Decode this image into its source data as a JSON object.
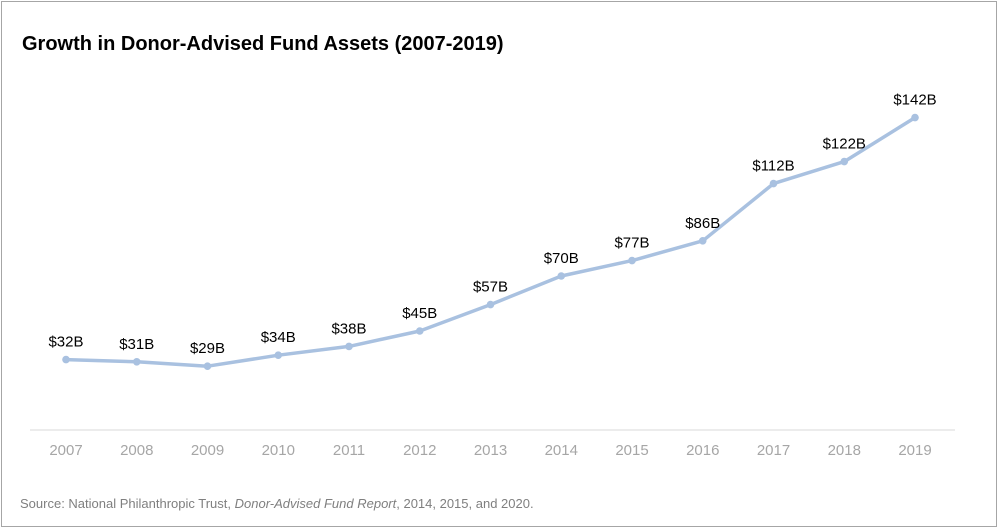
{
  "chart_data": {
    "type": "line",
    "title": "Growth in Donor-Advised Fund Assets (2007-2019)",
    "categories": [
      "2007",
      "2008",
      "2009",
      "2010",
      "2011",
      "2012",
      "2013",
      "2014",
      "2015",
      "2016",
      "2017",
      "2018",
      "2019"
    ],
    "series": [
      {
        "values": [
          32,
          31,
          29,
          34,
          38,
          45,
          57,
          70,
          77,
          86,
          112,
          122,
          142
        ],
        "labels": [
          "$32B",
          "$31B",
          "$29B",
          "$34B",
          "$38B",
          "$45B",
          "$57B",
          "$70B",
          "$77B",
          "$86B",
          "$112B",
          "$122B",
          "$142B"
        ],
        "color": "#a9c1e0"
      }
    ],
    "ylim": [
      0,
      165
    ],
    "grid": false,
    "legend": "none"
  },
  "source": {
    "prefix": "Source: National Philanthropic Trust, ",
    "report": "Donor-Advised Fund Report",
    "suffix": ", 2014, 2015, and 2020."
  },
  "colors": {
    "line": "#a9c1e0",
    "axis": "#d9d9d9",
    "tick_text": "#a6a6a6",
    "source_text": "#7f7f7f"
  }
}
